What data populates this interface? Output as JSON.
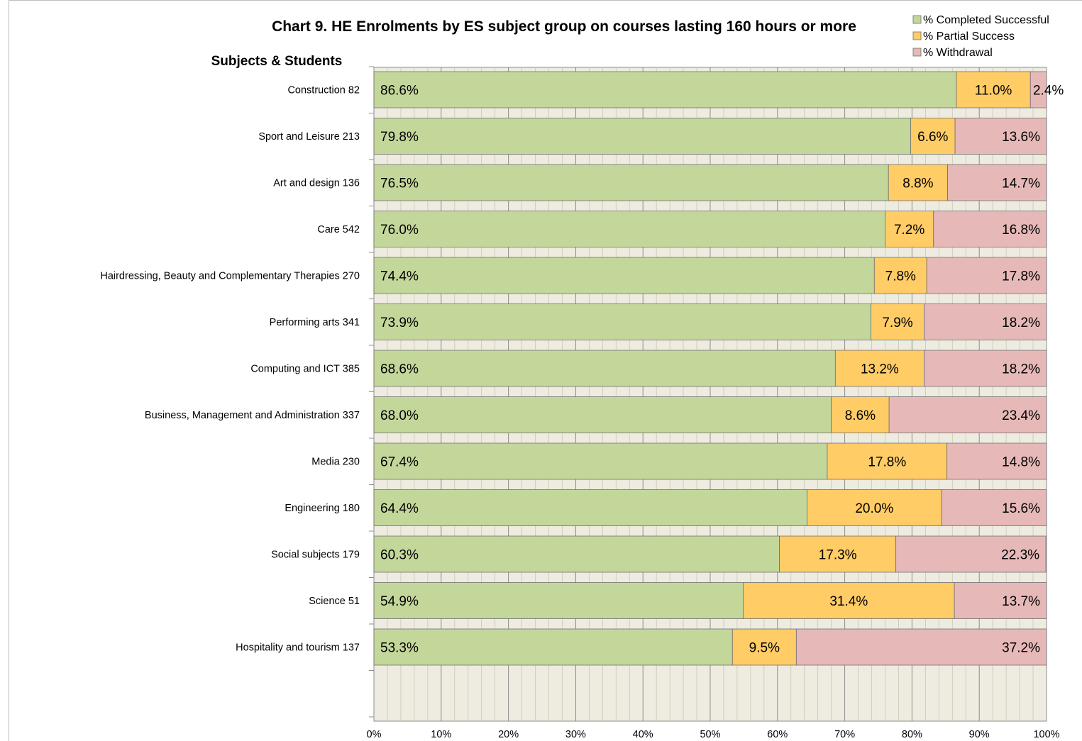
{
  "chart_data": {
    "type": "bar",
    "orientation": "horizontal",
    "stacked": "percent",
    "title": "Chart 9. HE Enrolments by ES subject group on courses lasting 160 hours or more",
    "ylabel": "Subjects & Students",
    "xlabel": "",
    "xlim": [
      0,
      100
    ],
    "x_ticks": [
      "0%",
      "10%",
      "20%",
      "30%",
      "40%",
      "50%",
      "60%",
      "70%",
      "80%",
      "90%",
      "100%"
    ],
    "legend_position": "top-right",
    "grid": true,
    "categories": [
      "Construction  82",
      "Sport and Leisure  213",
      "Art and design  136",
      "Care  542",
      "Hairdressing, Beauty and Complementary Therapies  270",
      "Performing arts  341",
      "Computing and ICT  385",
      "Business, Management and Administration  337",
      "Media  230",
      "Engineering  180",
      "Social subjects  179",
      "Science  51",
      "Hospitality and tourism  137"
    ],
    "series": [
      {
        "name": "% Completed Successful",
        "color": "#c4d79b",
        "values": [
          86.6,
          79.8,
          76.5,
          76.0,
          74.4,
          73.9,
          68.6,
          68.0,
          67.4,
          64.4,
          60.3,
          54.9,
          53.3
        ],
        "labels": [
          "86.6%",
          "79.8%",
          "76.5%",
          "76.0%",
          "74.4%",
          "73.9%",
          "68.6%",
          "68.0%",
          "67.4%",
          "64.4%",
          "60.3%",
          "54.9%",
          "53.3%"
        ]
      },
      {
        "name": "% Partial Success",
        "color": "#ffcc66",
        "values": [
          11.0,
          6.6,
          8.8,
          7.2,
          7.8,
          7.9,
          13.2,
          8.6,
          17.8,
          20.0,
          17.3,
          31.4,
          9.5
        ],
        "labels": [
          "11.0%",
          "6.6%",
          "8.8%",
          "7.2%",
          "7.8%",
          "7.9%",
          "13.2%",
          "8.6%",
          "17.8%",
          "20.0%",
          "17.3%",
          "31.4%",
          "9.5%"
        ]
      },
      {
        "name": "% Withdrawal",
        "color": "#e6b9b8",
        "values": [
          2.4,
          13.6,
          14.7,
          16.8,
          17.8,
          18.2,
          18.2,
          23.4,
          14.8,
          15.6,
          22.3,
          13.7,
          37.2
        ],
        "labels": [
          "2.4%",
          "13.6%",
          "14.7%",
          "16.8%",
          "17.8%",
          "18.2%",
          "18.2%",
          "23.4%",
          "14.8%",
          "15.6%",
          "22.3%",
          "13.7%",
          "37.2%"
        ]
      }
    ]
  }
}
